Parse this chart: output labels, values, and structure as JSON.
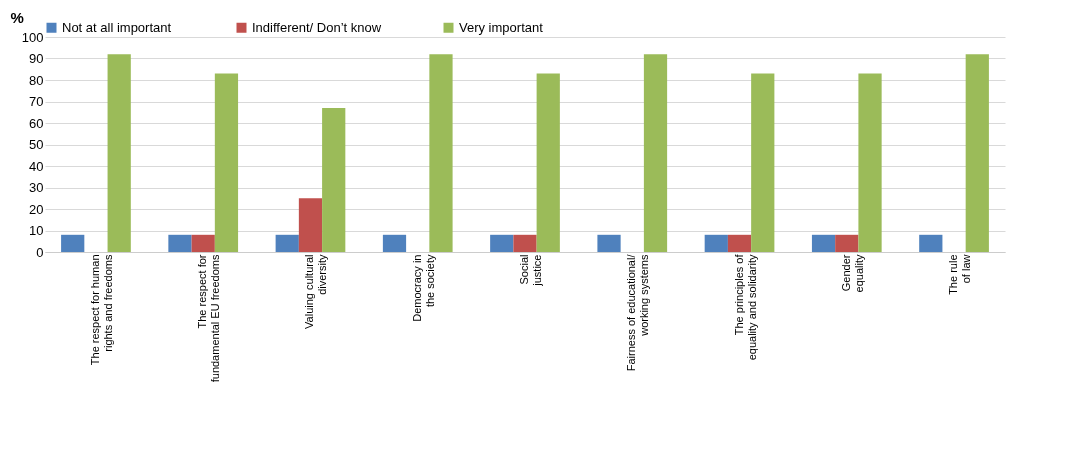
{
  "chart_data": {
    "type": "bar",
    "ylabel": "%",
    "categories": [
      "The respect for human rights and freedoms",
      "The respect for fundamental EU freedoms",
      "Valuing cultural diversity",
      "Democracy in the society",
      "Social justice",
      "Fairness of educational/ working systems",
      "The principles of equality and solidarity",
      "Gender equality",
      "The rule of law"
    ],
    "series": [
      {
        "name": "Not at all  important",
        "color": "#4f81bd",
        "values": [
          8,
          8,
          8,
          8,
          8,
          8,
          8,
          8,
          8
        ]
      },
      {
        "name": "Indifferent/ Don’t know",
        "color": "#c0504d",
        "values": [
          0,
          8,
          25,
          0,
          8,
          0,
          8,
          8,
          0
        ]
      },
      {
        "name": "Very important",
        "color": "#9bbb59",
        "values": [
          92,
          83,
          67,
          92,
          83,
          92,
          83,
          83,
          92
        ]
      }
    ],
    "ylim": [
      0,
      100
    ],
    "yticks": [
      0,
      10,
      20,
      30,
      40,
      50,
      60,
      70,
      80,
      90,
      100
    ],
    "grid": "y",
    "legend": "top"
  }
}
